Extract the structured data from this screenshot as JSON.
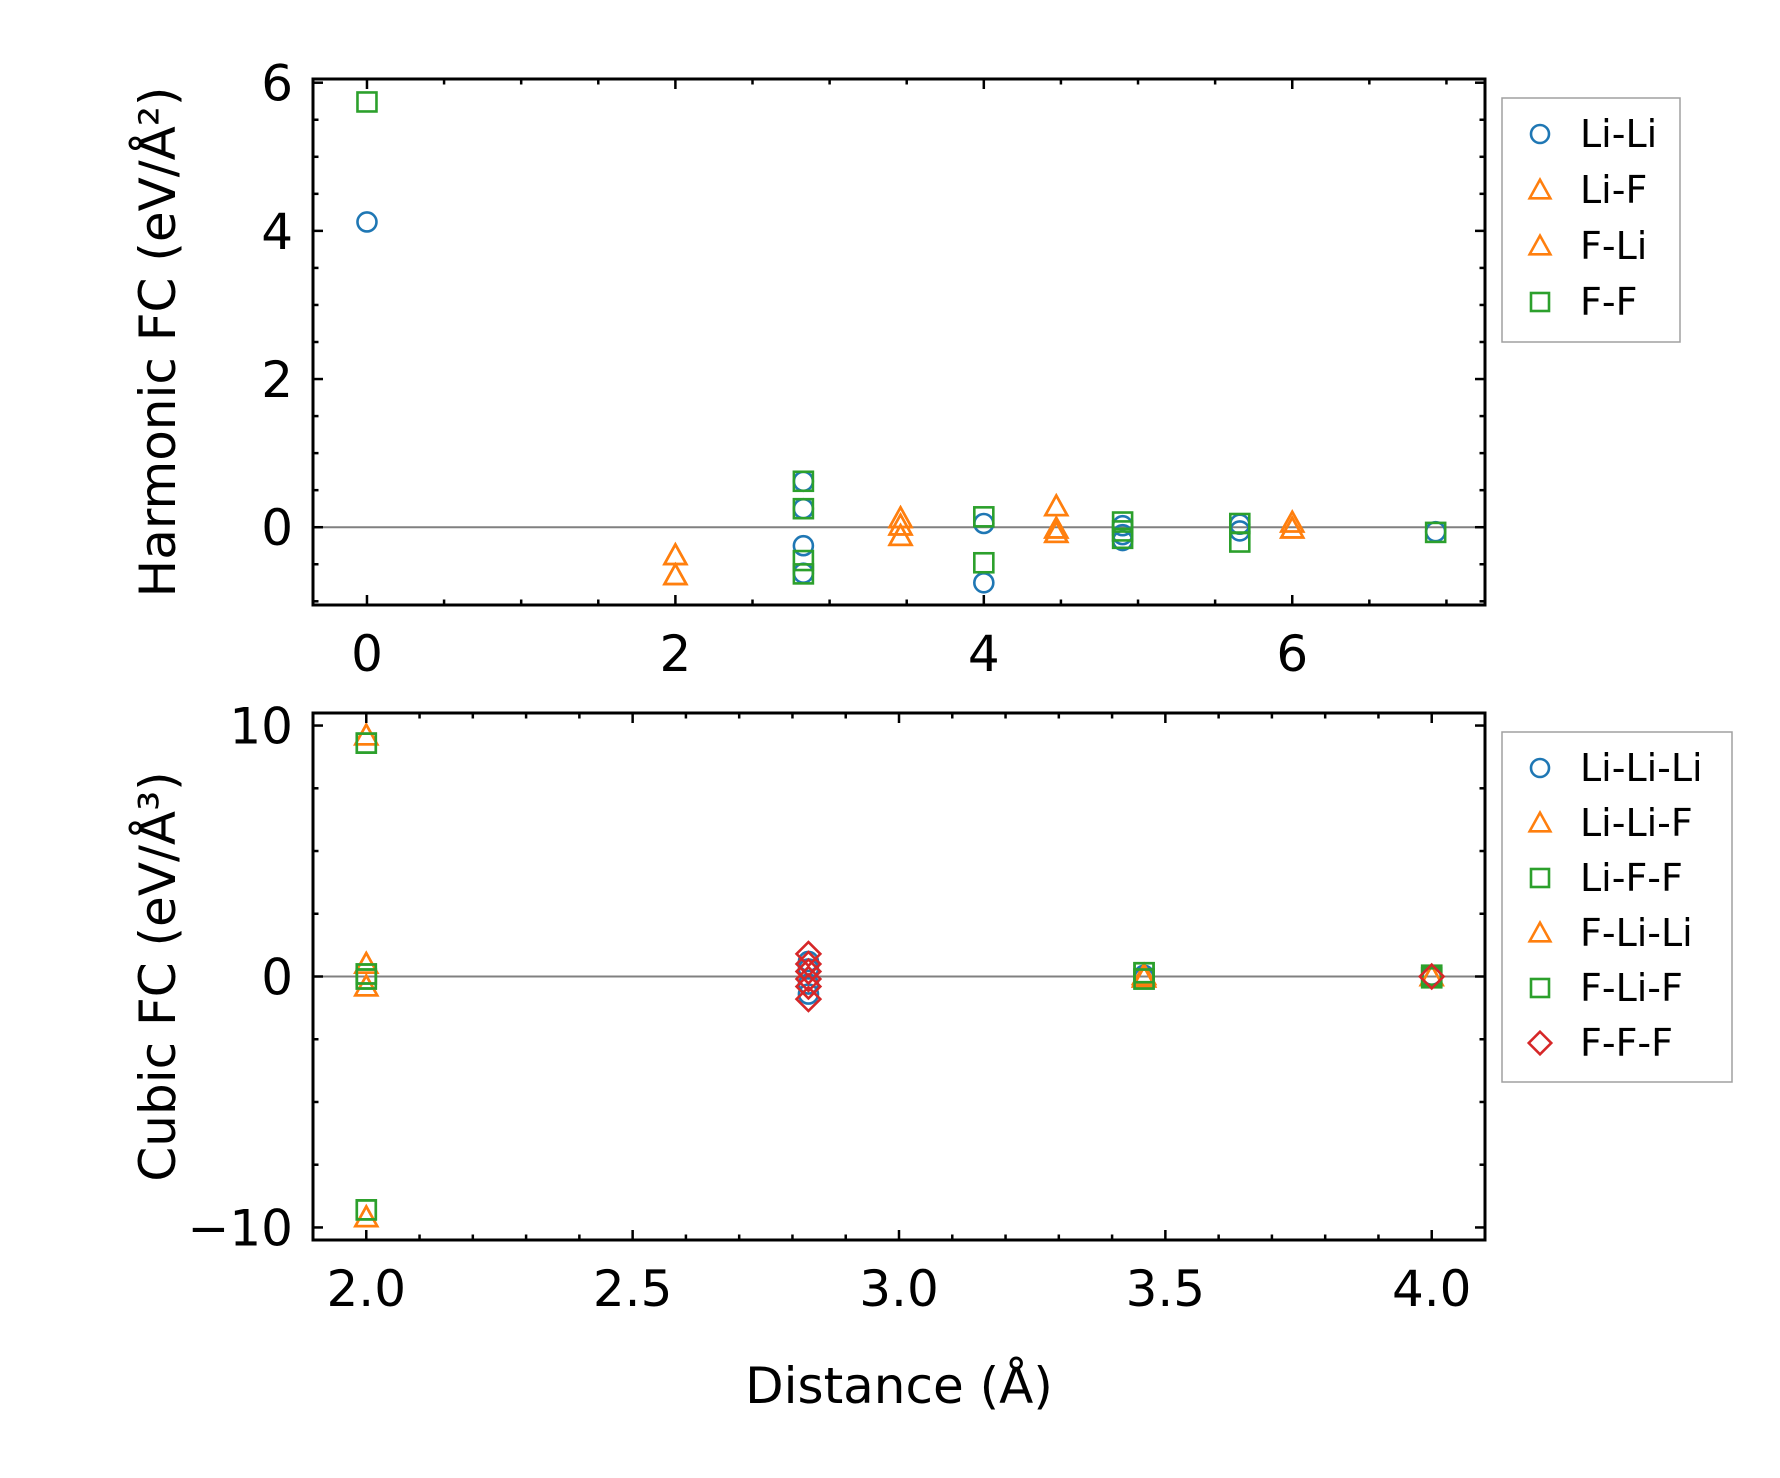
{
  "chart_data": [
    {
      "type": "scatter",
      "ylabel": "Harmonic FC (eV/Å²)",
      "xlabel": "",
      "xlim": [
        -0.35,
        7.25
      ],
      "ylim": [
        -1.05,
        6.05
      ],
      "grid": false,
      "legend_position": "outside-right-top",
      "xticks": [
        0,
        2,
        4,
        6
      ],
      "xtick_labels": [
        "0",
        "2",
        "4",
        "6"
      ],
      "yticks": [
        0,
        2,
        4,
        6
      ],
      "ytick_labels": [
        "0",
        "2",
        "4",
        "6"
      ],
      "reference_line_y": 0,
      "series": [
        {
          "name": "Li-Li",
          "marker": "circle",
          "color": "#1f77b4",
          "points": [
            [
              0,
              4.12
            ],
            [
              2.83,
              0.62
            ],
            [
              2.83,
              0.25
            ],
            [
              2.83,
              -0.25
            ],
            [
              2.83,
              -0.62
            ],
            [
              4.0,
              0.05
            ],
            [
              4.0,
              -0.75
            ],
            [
              4.9,
              0.02
            ],
            [
              4.9,
              -0.1
            ],
            [
              4.9,
              -0.18
            ],
            [
              5.66,
              0.04
            ],
            [
              5.66,
              -0.05
            ],
            [
              6.93,
              -0.06
            ]
          ]
        },
        {
          "name": "Li-F",
          "marker": "triangle",
          "color": "#ff7f0e",
          "points": [
            [
              2.0,
              -0.38
            ],
            [
              2.0,
              -0.65
            ],
            [
              3.46,
              0.12
            ],
            [
              3.46,
              0.02
            ],
            [
              3.46,
              -0.12
            ],
            [
              4.47,
              0.28
            ],
            [
              4.47,
              -0.02
            ],
            [
              4.47,
              -0.08
            ],
            [
              6.0,
              0.06
            ],
            [
              6.0,
              -0.02
            ]
          ]
        },
        {
          "name": "F-Li",
          "marker": "triangle",
          "color": "#ff7f0e",
          "points": [
            [
              2.0,
              -0.38
            ],
            [
              2.0,
              -0.65
            ],
            [
              3.46,
              0.12
            ],
            [
              3.46,
              0.02
            ],
            [
              3.46,
              -0.12
            ],
            [
              4.47,
              0.28
            ],
            [
              4.47,
              -0.02
            ],
            [
              4.47,
              -0.08
            ],
            [
              6.0,
              0.06
            ],
            [
              6.0,
              -0.02
            ]
          ]
        },
        {
          "name": "F-F",
          "marker": "square",
          "color": "#2ca02c",
          "points": [
            [
              0,
              5.74
            ],
            [
              2.83,
              0.62
            ],
            [
              2.83,
              0.25
            ],
            [
              2.83,
              -0.45
            ],
            [
              2.83,
              -0.63
            ],
            [
              4.0,
              0.14
            ],
            [
              4.0,
              -0.48
            ],
            [
              4.9,
              0.07
            ],
            [
              4.9,
              -0.05
            ],
            [
              4.9,
              -0.15
            ],
            [
              5.66,
              0.05
            ],
            [
              5.66,
              -0.2
            ],
            [
              6.93,
              -0.07
            ]
          ]
        }
      ]
    },
    {
      "type": "scatter",
      "ylabel": "Cubic FC (eV/Å³)",
      "xlabel": "Distance (Å)",
      "xlim": [
        1.9,
        4.1
      ],
      "ylim": [
        -10.5,
        10.5
      ],
      "grid": false,
      "legend_position": "outside-right-top",
      "xticks": [
        2.0,
        2.5,
        3.0,
        3.5,
        4.0
      ],
      "xtick_labels": [
        "2.0",
        "2.5",
        "3.0",
        "3.5",
        "4.0"
      ],
      "yticks": [
        -10,
        0,
        10
      ],
      "ytick_labels": [
        "−10",
        "0",
        "10"
      ],
      "reference_line_y": 0,
      "series": [
        {
          "name": "Li-Li-Li",
          "marker": "circle",
          "color": "#1f77b4",
          "points": [
            [
              2.83,
              0.6
            ],
            [
              2.83,
              0.3
            ],
            [
              2.83,
              -0.3
            ],
            [
              2.83,
              -0.7
            ],
            [
              3.46,
              0.05
            ],
            [
              3.46,
              -0.05
            ],
            [
              4.0,
              0.05
            ],
            [
              4.0,
              -0.05
            ]
          ]
        },
        {
          "name": "Li-Li-F",
          "marker": "triangle",
          "color": "#ff7f0e",
          "points": [
            [
              2.0,
              9.6
            ],
            [
              2.0,
              -9.6
            ],
            [
              2.0,
              0.5
            ],
            [
              2.0,
              -0.4
            ],
            [
              3.46,
              0.05
            ],
            [
              3.46,
              -0.05
            ],
            [
              4.0,
              0.0
            ]
          ]
        },
        {
          "name": "Li-F-F",
          "marker": "square",
          "color": "#2ca02c",
          "points": [
            [
              2.0,
              9.3
            ],
            [
              2.0,
              -9.3
            ],
            [
              2.0,
              0.1
            ],
            [
              2.0,
              -0.1
            ],
            [
              3.46,
              0.15
            ],
            [
              3.46,
              -0.1
            ],
            [
              4.0,
              0.05
            ],
            [
              4.0,
              -0.05
            ]
          ]
        },
        {
          "name": "F-Li-Li",
          "marker": "triangle",
          "color": "#ff7f0e",
          "points": [
            [
              2.0,
              9.6
            ],
            [
              2.0,
              -9.6
            ],
            [
              2.0,
              0.5
            ],
            [
              2.0,
              -0.4
            ],
            [
              3.46,
              0.05
            ],
            [
              3.46,
              -0.05
            ],
            [
              4.0,
              0.0
            ]
          ]
        },
        {
          "name": "F-Li-F",
          "marker": "square",
          "color": "#2ca02c",
          "points": [
            [
              2.0,
              9.3
            ],
            [
              2.0,
              -9.3
            ],
            [
              2.0,
              0.1
            ],
            [
              2.0,
              -0.1
            ],
            [
              3.46,
              0.15
            ],
            [
              3.46,
              -0.1
            ],
            [
              4.0,
              0.05
            ],
            [
              4.0,
              -0.05
            ]
          ]
        },
        {
          "name": "F-F-F",
          "marker": "diamond",
          "color": "#d62728",
          "points": [
            [
              2.83,
              0.9
            ],
            [
              2.83,
              0.5
            ],
            [
              2.83,
              0.2
            ],
            [
              2.83,
              -0.1
            ],
            [
              2.83,
              -0.4
            ],
            [
              2.83,
              -0.9
            ],
            [
              4.0,
              0.0
            ]
          ]
        }
      ]
    }
  ]
}
